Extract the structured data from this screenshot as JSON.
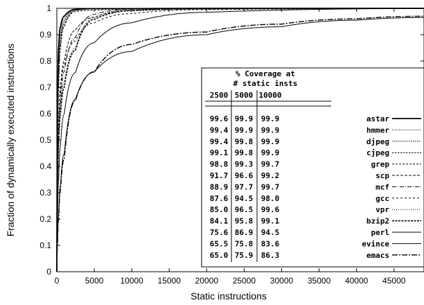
{
  "chart_data": {
    "type": "line",
    "xlabel": "Static instructions",
    "ylabel": "Fraction of dynamically executed instructions",
    "xlim": [
      0,
      49000
    ],
    "ylim": [
      0,
      1
    ],
    "xticks": [
      0,
      5000,
      10000,
      15000,
      20000,
      25000,
      30000,
      35000,
      40000,
      45000
    ],
    "yticks": [
      0,
      0.1,
      0.2,
      0.3,
      0.4,
      0.5,
      0.6,
      0.7,
      0.8,
      0.9,
      1
    ],
    "xtick_labels": [
      "0",
      "5000",
      "10000",
      "15000",
      "20000",
      "25000",
      "30000",
      "35000",
      "40000",
      "45000"
    ],
    "ytick_labels": [
      "0",
      "0.1",
      "0.2",
      "0.3",
      "0.4",
      "0.5",
      "0.6",
      "0.7",
      "0.8",
      "0.9",
      "1"
    ],
    "legend_placement": "center-right",
    "table": {
      "title_line1": "% Coverage at",
      "title_line2": "# static insts",
      "columns": [
        "2500",
        "5000",
        "10000"
      ],
      "rows": [
        {
          "name": "astar",
          "values": [
            "99.6",
            "99.9",
            "99.9"
          ]
        },
        {
          "name": "hmmer",
          "values": [
            "99.4",
            "99.9",
            "99.9"
          ]
        },
        {
          "name": "djpeg",
          "values": [
            "99.4",
            "99.8",
            "99.9"
          ]
        },
        {
          "name": "cjpeg",
          "values": [
            "99.1",
            "99.8",
            "99.9"
          ]
        },
        {
          "name": "grep",
          "values": [
            "98.8",
            "99.3",
            "99.7"
          ]
        },
        {
          "name": "scp",
          "values": [
            "91.7",
            "96.6",
            "99.2"
          ]
        },
        {
          "name": "mcf",
          "values": [
            "88.9",
            "97.7",
            "99.7"
          ]
        },
        {
          "name": "gcc",
          "values": [
            "87.6",
            "94.5",
            "98.0"
          ]
        },
        {
          "name": "vpr",
          "values": [
            "85.0",
            "96.5",
            "99.6"
          ]
        },
        {
          "name": "bzip2",
          "values": [
            "84.1",
            "95.8",
            "99.1"
          ]
        },
        {
          "name": "perl",
          "values": [
            "75.6",
            "86.9",
            "94.5"
          ]
        },
        {
          "name": "evince",
          "values": [
            "65.5",
            "75.8",
            "83.6"
          ]
        },
        {
          "name": "emacs",
          "values": [
            "65.0",
            "75.9",
            "86.3"
          ]
        }
      ]
    },
    "series": [
      {
        "name": "astar",
        "dash": "",
        "x": [
          0,
          100,
          250,
          500,
          1000,
          2500,
          5000,
          10000,
          20000,
          49000
        ],
        "y": [
          0,
          0.6,
          0.85,
          0.93,
          0.97,
          0.996,
          0.999,
          0.999,
          1,
          1
        ]
      },
      {
        "name": "hmmer",
        "dash": "1,1.5",
        "x": [
          0,
          100,
          250,
          500,
          1000,
          2500,
          5000,
          10000,
          20000,
          49000
        ],
        "y": [
          0,
          0.55,
          0.8,
          0.9,
          0.96,
          0.994,
          0.999,
          0.999,
          1,
          1
        ]
      },
      {
        "name": "djpeg",
        "dash": "1.5,1.5",
        "x": [
          0,
          100,
          250,
          500,
          1000,
          2500,
          5000,
          10000,
          20000,
          49000
        ],
        "y": [
          0,
          0.5,
          0.75,
          0.88,
          0.95,
          0.994,
          0.998,
          0.999,
          1,
          1
        ]
      },
      {
        "name": "cjpeg",
        "dash": "2.5,1.5",
        "x": [
          0,
          100,
          250,
          500,
          1000,
          2500,
          5000,
          10000,
          20000,
          49000
        ],
        "y": [
          0,
          0.45,
          0.72,
          0.86,
          0.94,
          0.991,
          0.998,
          0.999,
          1,
          1
        ]
      },
      {
        "name": "grep",
        "dash": "3,2",
        "x": [
          0,
          100,
          250,
          500,
          1000,
          2500,
          5000,
          10000,
          20000,
          49000
        ],
        "y": [
          0,
          0.4,
          0.7,
          0.85,
          0.93,
          0.988,
          0.993,
          0.997,
          0.999,
          1
        ]
      },
      {
        "name": "scp",
        "dash": "4,2",
        "x": [
          0,
          100,
          250,
          500,
          1000,
          2500,
          5000,
          10000,
          20000,
          49000
        ],
        "y": [
          0,
          0.35,
          0.55,
          0.7,
          0.8,
          0.917,
          0.966,
          0.992,
          0.998,
          1
        ]
      },
      {
        "name": "mcf",
        "dash": "6,2,1,2",
        "x": [
          0,
          100,
          250,
          500,
          1000,
          2500,
          5000,
          10000,
          20000,
          49000
        ],
        "y": [
          0,
          0.3,
          0.5,
          0.64,
          0.76,
          0.889,
          0.977,
          0.997,
          0.999,
          1
        ]
      },
      {
        "name": "gcc",
        "dash": "3,3",
        "x": [
          0,
          100,
          250,
          500,
          1000,
          2500,
          5000,
          10000,
          20000,
          49000
        ],
        "y": [
          0,
          0.35,
          0.55,
          0.68,
          0.78,
          0.876,
          0.945,
          0.98,
          0.995,
          0.999
        ]
      },
      {
        "name": "vpr",
        "dash": "1,2",
        "x": [
          0,
          100,
          250,
          500,
          1000,
          2500,
          5000,
          10000,
          20000,
          49000
        ],
        "y": [
          0,
          0.3,
          0.5,
          0.62,
          0.72,
          0.85,
          0.965,
          0.996,
          0.999,
          1
        ]
      },
      {
        "name": "bzip2",
        "dash": "3,1.5",
        "x": [
          0,
          100,
          250,
          500,
          1000,
          2500,
          5000,
          10000,
          20000,
          49000
        ],
        "y": [
          0,
          0.28,
          0.48,
          0.6,
          0.7,
          0.841,
          0.958,
          0.991,
          0.998,
          1
        ]
      },
      {
        "name": "perl",
        "dash": "",
        "x": [
          0,
          100,
          250,
          500,
          1000,
          2500,
          5000,
          10000,
          20000,
          49000
        ],
        "y": [
          0,
          0.2,
          0.35,
          0.48,
          0.6,
          0.756,
          0.869,
          0.945,
          0.985,
          0.999
        ]
      },
      {
        "name": "evince",
        "dash": "",
        "x": [
          0,
          100,
          250,
          500,
          1000,
          2500,
          5000,
          10000,
          20000,
          30000,
          40000,
          49000
        ],
        "y": [
          0,
          0.12,
          0.22,
          0.33,
          0.45,
          0.655,
          0.758,
          0.836,
          0.9,
          0.93,
          0.955,
          0.965
        ]
      },
      {
        "name": "emacs",
        "dash": "8,2,2,2",
        "x": [
          0,
          100,
          250,
          500,
          1000,
          2500,
          5000,
          10000,
          20000,
          30000,
          40000,
          49000
        ],
        "y": [
          0,
          0.11,
          0.2,
          0.31,
          0.43,
          0.65,
          0.759,
          0.863,
          0.91,
          0.94,
          0.96,
          0.97
        ]
      }
    ]
  }
}
